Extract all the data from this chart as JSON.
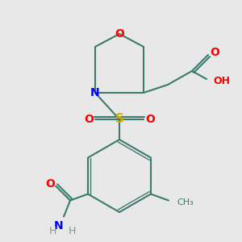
{
  "background_color": "#e8e8e8",
  "bond_color": "#3d7a6e",
  "bond_width": 1.5,
  "colors": {
    "O": "#ff0000",
    "N": "#0000ff",
    "S": "#ccaa00",
    "C": "#3d7a6e",
    "H": "#7a9a97"
  }
}
